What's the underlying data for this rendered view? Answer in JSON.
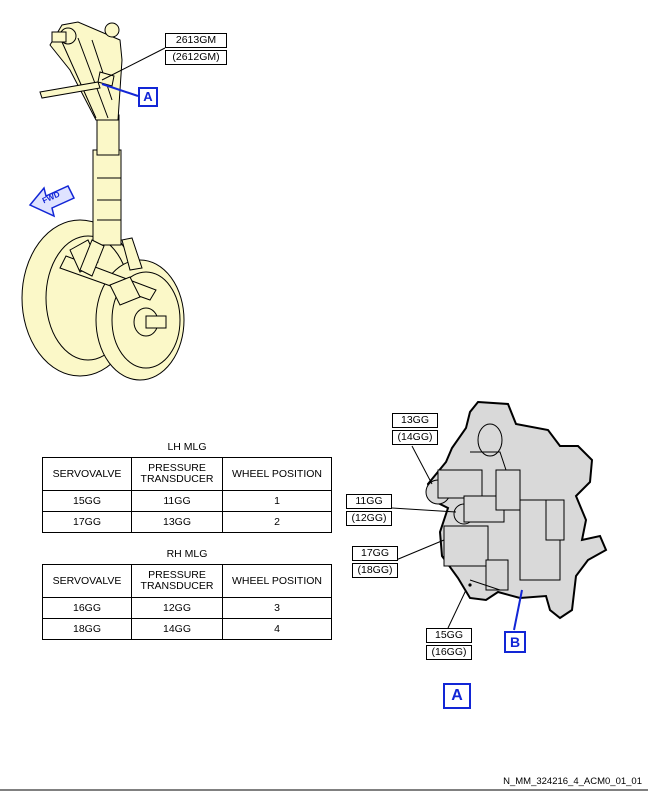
{
  "gear": {
    "callout_primary": "2613GM",
    "callout_alt": "(2612GM)",
    "view_ref": "A",
    "fwd_label": "FWD"
  },
  "tables": [
    {
      "title": "LH MLG",
      "headers": [
        "SERVOVALVE",
        "PRESSURE TRANSDUCER",
        "WHEEL POSITION"
      ],
      "rows": [
        [
          "15GG",
          "11GG",
          "1"
        ],
        [
          "17GG",
          "13GG",
          "2"
        ]
      ]
    },
    {
      "title": "RH MLG",
      "headers": [
        "SERVOVALVE",
        "PRESSURE TRANSDUCER",
        "WHEEL POSITION"
      ],
      "rows": [
        [
          "16GG",
          "12GG",
          "3"
        ],
        [
          "18GG",
          "14GG",
          "4"
        ]
      ]
    }
  ],
  "detail": {
    "callouts": [
      {
        "primary": "13GG",
        "alt": "(14GG)"
      },
      {
        "primary": "11GG",
        "alt": "(12GG)"
      },
      {
        "primary": "17GG",
        "alt": "(18GG)"
      },
      {
        "primary": "15GG",
        "alt": "(16GG)"
      }
    ],
    "ref_b": "B",
    "view_label": "A"
  },
  "footer": "N_MM_324216_4_ACM0_01_01",
  "colors": {
    "gear_fill": "#fbf8c8",
    "block_fill": "#d9d9d9",
    "tag_blue": "#1226d6"
  }
}
